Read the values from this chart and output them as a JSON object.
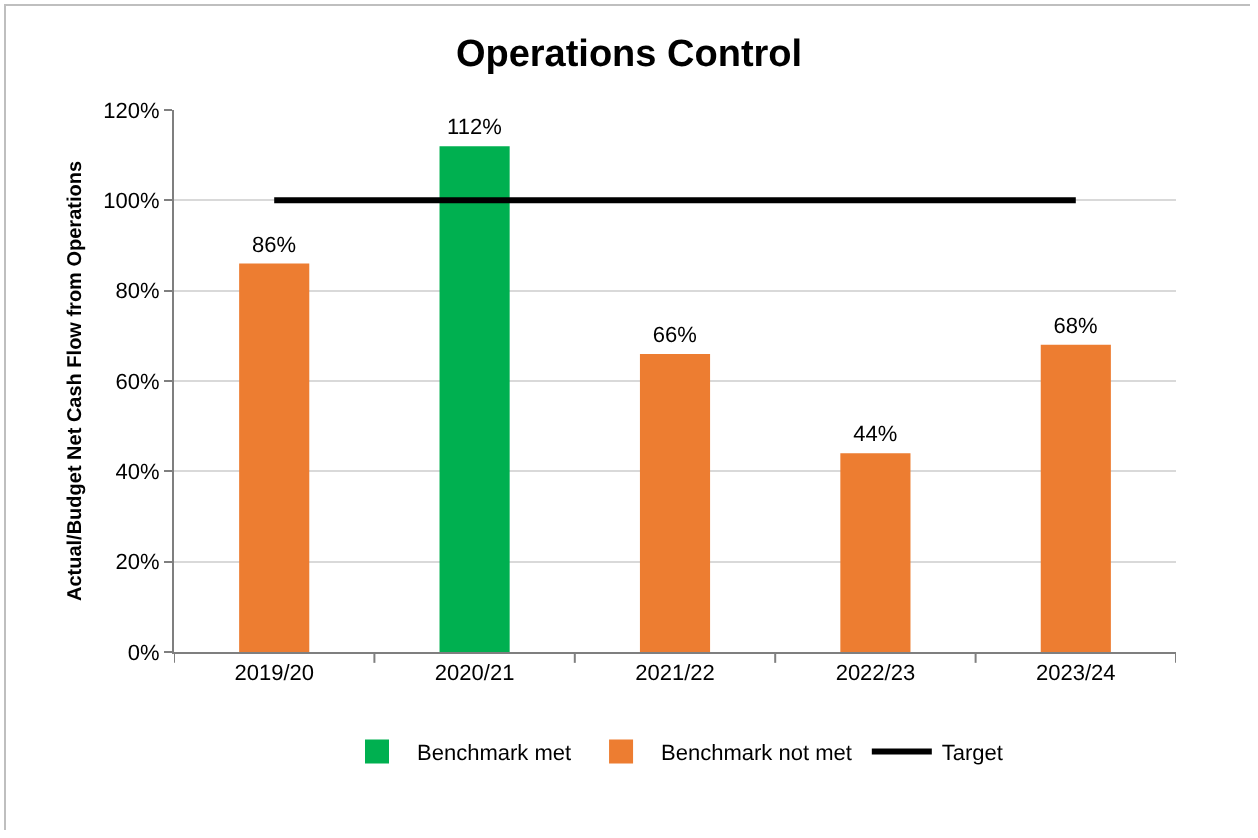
{
  "chart_data": {
    "type": "bar",
    "title": "Operations Control",
    "ylabel": "Actual/Budget Net Cash Flow from Operations",
    "categories": [
      "2019/20",
      "2020/21",
      "2021/22",
      "2022/23",
      "2023/24"
    ],
    "series": [
      {
        "name": "Benchmark met",
        "color": "#00b050",
        "values": [
          null,
          112,
          null,
          null,
          null
        ],
        "value_labels": [
          null,
          "112%",
          null,
          null,
          null
        ]
      },
      {
        "name": "Benchmark not met",
        "color": "#ed7d31",
        "values": [
          86,
          null,
          66,
          44,
          68
        ],
        "value_labels": [
          "86%",
          null,
          "66%",
          "44%",
          "68%"
        ]
      },
      {
        "name": "Target",
        "type": "line",
        "color": "#000000",
        "values": [
          100,
          100,
          100,
          100,
          100
        ]
      }
    ],
    "ylim": [
      0,
      120
    ],
    "yticks": [
      {
        "value": 0,
        "label": "0%"
      },
      {
        "value": 20,
        "label": "20%"
      },
      {
        "value": 40,
        "label": "40%"
      },
      {
        "value": 60,
        "label": "60%"
      },
      {
        "value": 80,
        "label": "80%"
      },
      {
        "value": 100,
        "label": "100%"
      },
      {
        "value": 120,
        "label": "120%"
      }
    ],
    "grid": "y",
    "legend": "bottom",
    "marker": "none",
    "line_style": "solid"
  }
}
